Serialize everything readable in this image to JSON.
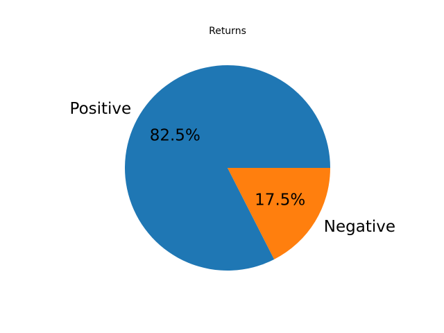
{
  "chart_data": {
    "type": "pie",
    "title": "Returns",
    "slices": [
      {
        "label": "Positive",
        "value": 82.5,
        "percent_label": "82.5%",
        "color": "#1f77b4"
      },
      {
        "label": "Negative",
        "value": 17.5,
        "percent_label": "17.5%",
        "color": "#ff7f0e"
      }
    ],
    "start_angle_deg": 0,
    "direction": "counterclockwise",
    "legend": "none"
  }
}
